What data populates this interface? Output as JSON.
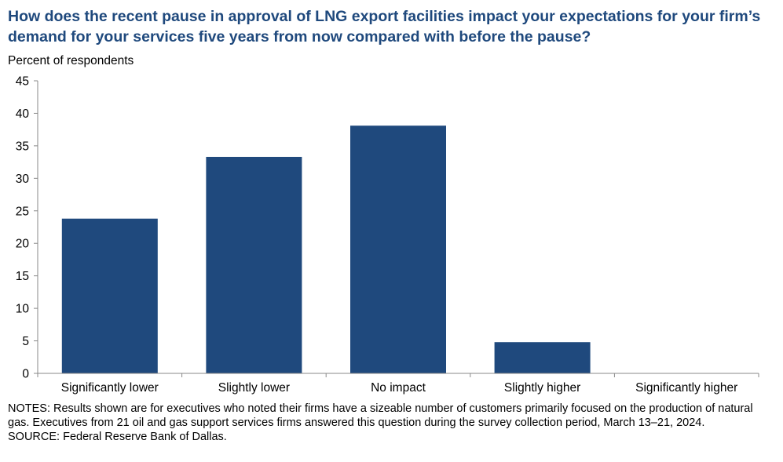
{
  "title": "How does the recent pause in approval of LNG export facilities impact your expectations for your firm’s demand for your services five years from now compared with before the pause?",
  "chart_data": {
    "type": "bar",
    "categories": [
      "Significantly lower",
      "Slightly lower",
      "No impact",
      "Slightly higher",
      "Significantly higher"
    ],
    "values": [
      23.8,
      33.3,
      38.1,
      4.8,
      0
    ],
    "ylabel": "Percent of respondents",
    "xlabel": "",
    "ylim": [
      0,
      45
    ],
    "yticks": [
      0,
      5,
      10,
      15,
      20,
      25,
      30,
      35,
      40,
      45
    ],
    "color": "#1f497d",
    "grid": false
  },
  "notes": "NOTES: Results shown are for executives who noted their firms have a sizeable number of customers primarily focused on the production of natural gas. Executives from 21 oil and gas support services firms answered this question during the survey collection period, March 13–21, 2024.",
  "source": "SOURCE: Federal Reserve Bank of Dallas."
}
